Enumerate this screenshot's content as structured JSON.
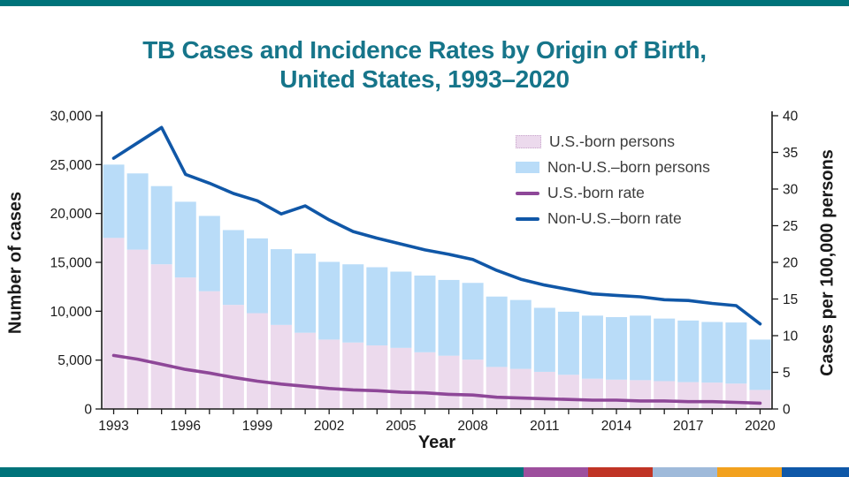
{
  "page": {
    "title_line1": "TB Cases and Incidence Rates by Origin of Birth,",
    "title_line2": "United States, 1993–2020"
  },
  "colors": {
    "title": "#16758A",
    "us_born_fill": "#ECDAED",
    "non_us_born_fill": "#B9DCF8",
    "us_rate_line": "#8E4798",
    "non_us_rate_line": "#1057A7",
    "axis": "#1A1A1A",
    "legend_text": "#3D3D3D",
    "top_stripe": "#00737A",
    "footer_teal": "#00737A",
    "footer_purple": "#9D4F9D",
    "footer_red": "#C03425",
    "footer_lightblue": "#9FBADA",
    "footer_orange": "#F2A11E",
    "footer_navy": "#0F58A8"
  },
  "legend": {
    "items": [
      {
        "label": "U.S.-born persons"
      },
      {
        "label": "Non-U.S.–born persons"
      },
      {
        "label": "U.S.-born rate"
      },
      {
        "label": "Non-U.S.–born rate"
      }
    ]
  },
  "chart_data": {
    "type": "bar",
    "subtype": "stacked-bars-with-overlaid-lines",
    "title": "TB Cases and Incidence Rates by Origin of Birth, United States, 1993–2020",
    "xlabel": "Year",
    "ylabel_left": "Number of cases",
    "ylabel_right": "Cases per 100,000 persons",
    "x": [
      1993,
      1994,
      1995,
      1996,
      1997,
      1998,
      1999,
      2000,
      2001,
      2002,
      2003,
      2004,
      2005,
      2006,
      2007,
      2008,
      2009,
      2010,
      2011,
      2012,
      2013,
      2014,
      2015,
      2016,
      2017,
      2018,
      2019,
      2020
    ],
    "x_tick_labels": [
      "1993",
      "1996",
      "1999",
      "2002",
      "2005",
      "2008",
      "2011",
      "2014",
      "2017",
      "2020"
    ],
    "ylim_left": [
      0,
      30000
    ],
    "yticks_left": [
      "0",
      "5,000",
      "10,000",
      "15,000",
      "20,000",
      "25,000",
      "30,000"
    ],
    "ylim_right": [
      0,
      40
    ],
    "yticks_right": [
      "0",
      "5",
      "10",
      "15",
      "20",
      "25",
      "30",
      "35",
      "40"
    ],
    "grid": false,
    "legend_position": "inside-top-right",
    "series": [
      {
        "name": "U.S.-born persons",
        "type": "bar-stack",
        "axis": "left",
        "values": [
          17500,
          16300,
          14800,
          13450,
          12050,
          10650,
          9800,
          8600,
          7800,
          7100,
          6800,
          6500,
          6250,
          5800,
          5450,
          5050,
          4300,
          4100,
          3800,
          3500,
          3100,
          3000,
          2950,
          2850,
          2750,
          2700,
          2600,
          1950
        ]
      },
      {
        "name": "Non-U.S.–born persons",
        "type": "bar-stack",
        "axis": "left",
        "values": [
          7500,
          7800,
          8000,
          7750,
          7700,
          7650,
          7650,
          7750,
          8100,
          7950,
          8000,
          8000,
          7800,
          7850,
          7750,
          7850,
          7200,
          7050,
          6550,
          6450,
          6450,
          6400,
          6600,
          6400,
          6300,
          6200,
          6250,
          5150
        ]
      },
      {
        "name": "U.S.-born rate",
        "type": "line",
        "axis": "right",
        "values": [
          7.3,
          6.8,
          6.1,
          5.4,
          4.9,
          4.3,
          3.8,
          3.4,
          3.1,
          2.8,
          2.6,
          2.5,
          2.3,
          2.2,
          2.0,
          1.9,
          1.6,
          1.5,
          1.4,
          1.3,
          1.2,
          1.2,
          1.1,
          1.1,
          1.0,
          1.0,
          0.9,
          0.8
        ]
      },
      {
        "name": "Non-U.S.–born rate",
        "type": "line",
        "axis": "right",
        "values": [
          34.2,
          36.3,
          38.4,
          32.0,
          30.8,
          29.4,
          28.4,
          26.6,
          27.7,
          25.8,
          24.2,
          23.3,
          22.5,
          21.7,
          21.1,
          20.4,
          18.9,
          17.7,
          16.9,
          16.3,
          15.7,
          15.5,
          15.3,
          14.9,
          14.8,
          14.4,
          14.1,
          11.6
        ]
      }
    ]
  }
}
